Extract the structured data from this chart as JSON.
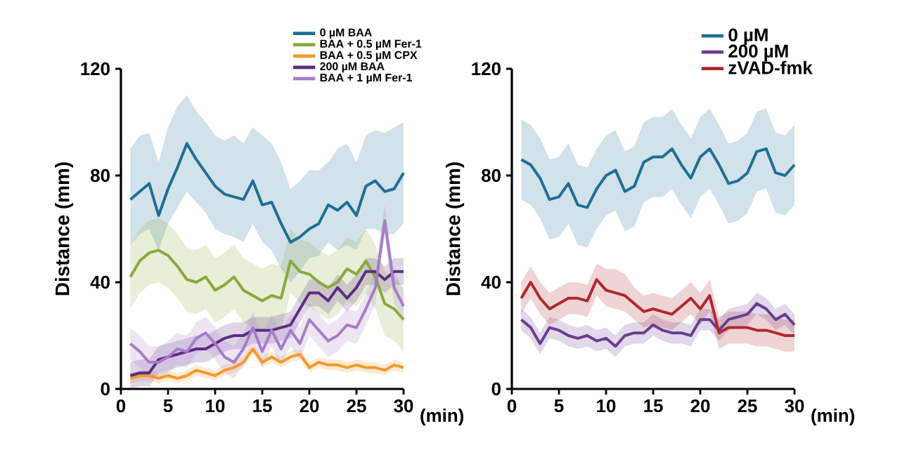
{
  "chart_data": [
    {
      "type": "line",
      "ylabel": "Distance (mm)",
      "xlabel": "(min)",
      "xlim": [
        0,
        30
      ],
      "ylim": [
        0,
        120
      ],
      "xticks": [
        0,
        5,
        10,
        15,
        20,
        25,
        30
      ],
      "yticks": [
        0,
        40,
        80,
        120
      ],
      "legend": "top right",
      "grid": false,
      "marker": "none",
      "x": [
        1,
        2,
        3,
        4,
        5,
        6,
        7,
        8,
        9,
        10,
        11,
        12,
        13,
        14,
        15,
        16,
        17,
        18,
        19,
        20,
        21,
        22,
        23,
        24,
        25,
        26,
        27,
        28,
        29,
        30
      ],
      "series": [
        {
          "name": "0 µM BAA",
          "color": "#1f6e96",
          "values": [
            71,
            74,
            77,
            65,
            75,
            83,
            92,
            86,
            81,
            76,
            73,
            72,
            71,
            78,
            69,
            70,
            62,
            55,
            57,
            60,
            62,
            69,
            67,
            70,
            65,
            76,
            78,
            74,
            75,
            81
          ],
          "lower": [
            54,
            58,
            60,
            52,
            62,
            68,
            74,
            70,
            66,
            60,
            58,
            57,
            55,
            62,
            55,
            52,
            45,
            40,
            44,
            49,
            50,
            55,
            52,
            54,
            52,
            60,
            60,
            58,
            58,
            62
          ],
          "upper": [
            90,
            95,
            96,
            85,
            98,
            106,
            110,
            104,
            100,
            95,
            93,
            95,
            92,
            98,
            95,
            92,
            85,
            75,
            78,
            82,
            82,
            85,
            90,
            92,
            85,
            95,
            97,
            96,
            98,
            100
          ]
        },
        {
          "name": "BAA + 0.5 µM Fer-1",
          "color": "#8aa83c",
          "values": [
            42,
            48,
            51,
            52,
            50,
            46,
            41,
            40,
            42,
            37,
            39,
            42,
            37,
            35,
            33,
            35,
            34,
            48,
            44,
            43,
            40,
            38,
            40,
            45,
            43,
            48,
            42,
            32,
            30,
            26
          ],
          "lower": [
            30,
            36,
            39,
            40,
            38,
            34,
            29,
            28,
            30,
            25,
            27,
            30,
            25,
            23,
            21,
            23,
            22,
            36,
            32,
            31,
            28,
            26,
            28,
            33,
            31,
            36,
            30,
            20,
            18,
            14
          ],
          "upper": [
            54,
            60,
            63,
            64,
            62,
            58,
            53,
            52,
            54,
            49,
            51,
            54,
            49,
            47,
            45,
            47,
            46,
            60,
            56,
            55,
            52,
            50,
            52,
            57,
            55,
            60,
            54,
            44,
            42,
            38
          ]
        },
        {
          "name": "BAA + 0.5 µM CPX",
          "color": "#f39a2e",
          "values": [
            4,
            5,
            5,
            4,
            5,
            4,
            5,
            7,
            6,
            5,
            7,
            8,
            10,
            15,
            10,
            12,
            10,
            12,
            13,
            8,
            10,
            9,
            9,
            8,
            9,
            8,
            8,
            7,
            9,
            8
          ],
          "lower": [
            2,
            3,
            3,
            2,
            3,
            2,
            3,
            5,
            4,
            3,
            5,
            6,
            8,
            13,
            8,
            10,
            8,
            10,
            11,
            6,
            8,
            7,
            7,
            6,
            7,
            6,
            6,
            5,
            7,
            6
          ],
          "upper": [
            6,
            7,
            7,
            6,
            7,
            6,
            7,
            9,
            8,
            7,
            9,
            10,
            12,
            17,
            12,
            14,
            12,
            14,
            15,
            10,
            12,
            11,
            11,
            10,
            11,
            10,
            10,
            9,
            11,
            10
          ]
        },
        {
          "name": "200 µM BAA",
          "color": "#5b2d82",
          "values": [
            5,
            6,
            6,
            11,
            12,
            13,
            14,
            15,
            15,
            17,
            19,
            20,
            20,
            22,
            22,
            22,
            23,
            24,
            30,
            36,
            36,
            33,
            38,
            34,
            38,
            44,
            44,
            41,
            44,
            44
          ],
          "lower": [
            0,
            1,
            1,
            6,
            7,
            8,
            9,
            10,
            10,
            12,
            14,
            15,
            15,
            17,
            17,
            17,
            18,
            19,
            25,
            31,
            31,
            28,
            33,
            29,
            33,
            39,
            39,
            36,
            39,
            39
          ],
          "upper": [
            10,
            11,
            11,
            16,
            17,
            18,
            19,
            20,
            20,
            22,
            24,
            25,
            25,
            27,
            27,
            27,
            28,
            29,
            35,
            41,
            41,
            38,
            43,
            39,
            43,
            49,
            49,
            46,
            49,
            49
          ]
        },
        {
          "name": "BAA + 1 µM Fer-1",
          "color": "#a77cc6",
          "values": [
            17,
            14,
            10,
            10,
            12,
            15,
            14,
            19,
            21,
            17,
            12,
            10,
            15,
            23,
            14,
            22,
            15,
            22,
            17,
            26,
            22,
            18,
            20,
            24,
            23,
            30,
            38,
            63,
            38,
            31
          ],
          "lower": [
            11,
            8,
            4,
            4,
            6,
            9,
            8,
            13,
            15,
            11,
            6,
            4,
            9,
            17,
            8,
            16,
            9,
            16,
            11,
            20,
            16,
            12,
            14,
            18,
            17,
            24,
            32,
            57,
            32,
            25
          ],
          "upper": [
            23,
            20,
            16,
            16,
            18,
            21,
            20,
            25,
            27,
            23,
            18,
            16,
            21,
            29,
            20,
            28,
            21,
            28,
            23,
            32,
            28,
            24,
            26,
            30,
            29,
            36,
            44,
            69,
            44,
            37
          ]
        }
      ]
    },
    {
      "type": "line",
      "ylabel": "Distance (mm)",
      "xlabel": "(min)",
      "xlim": [
        0,
        30
      ],
      "ylim": [
        0,
        120
      ],
      "xticks": [
        0,
        5,
        10,
        15,
        20,
        25,
        30
      ],
      "yticks": [
        0,
        40,
        80,
        120
      ],
      "legend": "top right",
      "grid": false,
      "marker": "none",
      "x": [
        1,
        2,
        3,
        4,
        5,
        6,
        7,
        8,
        9,
        10,
        11,
        12,
        13,
        14,
        15,
        16,
        17,
        18,
        19,
        20,
        21,
        22,
        23,
        24,
        25,
        26,
        27,
        28,
        29,
        30
      ],
      "series": [
        {
          "name": "0 µM",
          "color": "#1f6e96",
          "values": [
            86,
            84,
            79,
            71,
            72,
            77,
            69,
            68,
            75,
            80,
            82,
            74,
            76,
            85,
            87,
            87,
            90,
            84,
            79,
            87,
            90,
            84,
            77,
            78,
            81,
            89,
            90,
            81,
            80,
            84
          ],
          "lower": [
            71,
            69,
            64,
            56,
            57,
            62,
            54,
            53,
            60,
            65,
            67,
            59,
            61,
            70,
            72,
            72,
            75,
            69,
            64,
            72,
            75,
            69,
            62,
            63,
            66,
            74,
            75,
            66,
            65,
            69
          ],
          "upper": [
            101,
            99,
            94,
            86,
            87,
            92,
            84,
            83,
            90,
            95,
            97,
            89,
            91,
            100,
            102,
            102,
            105,
            99,
            94,
            102,
            105,
            99,
            92,
            93,
            96,
            104,
            105,
            96,
            95,
            99
          ]
        },
        {
          "name": "200 µM",
          "color": "#6a3d8f",
          "values": [
            26,
            23,
            17,
            23,
            22,
            20,
            19,
            20,
            18,
            19,
            16,
            20,
            21,
            21,
            24,
            22,
            21,
            21,
            20,
            26,
            26,
            22,
            26,
            27,
            28,
            32,
            30,
            26,
            28,
            24
          ],
          "lower": [
            22,
            19,
            13,
            19,
            18,
            16,
            15,
            16,
            14,
            15,
            12,
            16,
            17,
            17,
            20,
            18,
            17,
            17,
            16,
            22,
            22,
            18,
            22,
            23,
            24,
            28,
            26,
            22,
            24,
            20
          ],
          "upper": [
            30,
            27,
            21,
            27,
            26,
            24,
            23,
            24,
            22,
            23,
            20,
            24,
            25,
            25,
            28,
            26,
            25,
            25,
            24,
            30,
            30,
            26,
            30,
            31,
            32,
            36,
            34,
            30,
            32,
            28
          ]
        },
        {
          "name": "zVAD-fmk",
          "color": "#b0282e",
          "values": [
            34,
            40,
            34,
            30,
            32,
            34,
            34,
            33,
            41,
            37,
            36,
            35,
            32,
            29,
            30,
            29,
            28,
            31,
            34,
            30,
            35,
            21,
            23,
            23,
            23,
            22,
            22,
            21,
            20,
            20
          ],
          "lower": [
            28,
            34,
            28,
            24,
            26,
            28,
            28,
            27,
            35,
            31,
            30,
            29,
            26,
            23,
            24,
            23,
            22,
            25,
            28,
            24,
            29,
            15,
            17,
            17,
            17,
            16,
            16,
            15,
            14,
            14
          ],
          "upper": [
            40,
            46,
            40,
            36,
            38,
            40,
            40,
            39,
            47,
            45,
            45,
            43,
            38,
            35,
            36,
            35,
            34,
            37,
            40,
            36,
            41,
            27,
            29,
            29,
            29,
            28,
            28,
            27,
            26,
            26
          ]
        }
      ]
    }
  ]
}
